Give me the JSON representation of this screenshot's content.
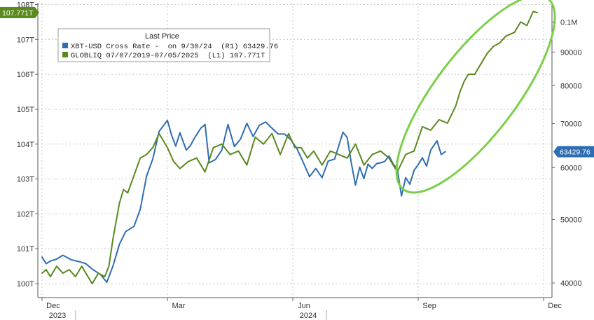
{
  "chart_data": {
    "type": "line",
    "legend": {
      "title": "Last Price",
      "entries": [
        {
          "series": "xbt",
          "text": "XBT-USD Cross Rate -  on 9/30/24  (R1) 63429.76"
        },
        {
          "series": "globliq",
          "text": "GLOBLIQ 07/07/2019-07/05/2025  (L1) 107.771T"
        }
      ],
      "placement": "top-left"
    },
    "x_axis": {
      "ticks": [
        {
          "label": "Dec",
          "sublabel": "2023",
          "month": 0
        },
        {
          "label": "Mar",
          "sublabel": "",
          "month": 3
        },
        {
          "label": "Jun",
          "sublabel": "2024",
          "month": 6
        },
        {
          "label": "Sep",
          "sublabel": "",
          "month": 9
        },
        {
          "label": "Dec",
          "sublabel": "",
          "month": 12
        }
      ],
      "range_months": [
        -0.1,
        12.2
      ]
    },
    "y_left": {
      "ticks": [
        "100T",
        "101T",
        "102T",
        "103T",
        "104T",
        "105T",
        "106T",
        "107T",
        "108T"
      ],
      "tick_values": [
        100,
        101,
        102,
        103,
        104,
        105,
        106,
        107,
        108
      ],
      "unit": "T",
      "range": [
        99.6,
        108.05
      ]
    },
    "y_right": {
      "scale": "log",
      "ticks": [
        "40000",
        "50000",
        "60000",
        "70000",
        "80000",
        "90000",
        "0.1M"
      ],
      "tick_values": [
        40000,
        50000,
        60000,
        70000,
        80000,
        90000,
        100000
      ],
      "range": [
        38000,
        107000
      ]
    },
    "grid": true,
    "series": [
      {
        "id": "xbt",
        "axis": "right",
        "color": "#2f6db3",
        "last_label": "63429.76",
        "x": [
          0.0,
          0.1,
          0.2,
          0.35,
          0.5,
          0.7,
          0.9,
          1.05,
          1.2,
          1.4,
          1.55,
          1.7,
          1.85,
          2.0,
          2.2,
          2.35,
          2.5,
          2.65,
          2.8,
          3.0,
          3.1,
          3.2,
          3.3,
          3.45,
          3.55,
          3.65,
          3.8,
          3.9,
          4.0,
          4.15,
          4.3,
          4.45,
          4.6,
          4.75,
          4.9,
          5.05,
          5.2,
          5.35,
          5.5,
          5.65,
          5.8,
          5.95,
          6.1,
          6.25,
          6.4,
          6.55,
          6.7,
          6.85,
          7.0,
          7.1,
          7.2,
          7.3,
          7.4,
          7.5,
          7.6,
          7.7,
          7.8,
          7.9,
          8.0,
          8.1,
          8.2,
          8.3,
          8.4,
          8.5,
          8.6,
          8.7,
          8.8,
          8.9,
          9.0,
          9.1,
          9.2,
          9.3,
          9.45,
          9.55,
          9.65
        ],
        "y": [
          43800,
          42800,
          43200,
          43500,
          44100,
          43400,
          43100,
          42800,
          42000,
          41200,
          40100,
          42500,
          45800,
          47900,
          48800,
          51800,
          58200,
          61800,
          68100,
          70800,
          67200,
          64700,
          67800,
          63800,
          64800,
          66600,
          68900,
          69800,
          61000,
          61700,
          63800,
          69800,
          64600,
          66300,
          70100,
          66900,
          69600,
          70400,
          68900,
          67500,
          67500,
          66200,
          64100,
          61100,
          58100,
          59800,
          57900,
          61400,
          61800,
          64800,
          67900,
          66700,
          60900,
          56400,
          60100,
          57700,
          60700,
          59800,
          60800,
          61000,
          61300,
          62500,
          60800,
          59600,
          54300,
          57900,
          56600,
          59400,
          60600,
          62100,
          60300,
          63800,
          65900,
          62800,
          63430
        ]
      },
      {
        "id": "globliq",
        "axis": "left",
        "color": "#5a8a1e",
        "last_label": "107.771T",
        "x": [
          0.0,
          0.1,
          0.2,
          0.35,
          0.5,
          0.65,
          0.8,
          0.95,
          1.1,
          1.2,
          1.35,
          1.5,
          1.6,
          1.7,
          1.85,
          1.95,
          2.05,
          2.2,
          2.35,
          2.5,
          2.65,
          2.8,
          3.0,
          3.15,
          3.3,
          3.5,
          3.7,
          3.9,
          4.1,
          4.3,
          4.5,
          4.7,
          4.9,
          5.1,
          5.3,
          5.5,
          5.7,
          5.9,
          6.05,
          6.2,
          6.35,
          6.5,
          6.7,
          6.9,
          7.1,
          7.3,
          7.5,
          7.7,
          7.9,
          8.1,
          8.3,
          8.5,
          8.7,
          8.9,
          9.1,
          9.3,
          9.5,
          9.7,
          9.9,
          10.0,
          10.1,
          10.2,
          10.35,
          10.5,
          10.65,
          10.8,
          10.95,
          11.1,
          11.3,
          11.45,
          11.6,
          11.75,
          11.85
        ],
        "y": [
          100.3,
          100.4,
          100.2,
          100.5,
          100.3,
          100.4,
          100.2,
          100.5,
          100.2,
          100.0,
          100.3,
          100.2,
          100.5,
          101.3,
          102.3,
          102.7,
          102.6,
          103.1,
          103.6,
          103.7,
          103.9,
          104.3,
          103.9,
          103.5,
          103.3,
          103.5,
          103.6,
          103.2,
          103.9,
          104.0,
          103.7,
          103.8,
          103.4,
          104.2,
          104.0,
          104.3,
          103.7,
          104.3,
          103.9,
          103.9,
          103.6,
          103.8,
          103.4,
          103.8,
          103.7,
          103.6,
          104.0,
          103.4,
          103.7,
          103.8,
          103.6,
          103.2,
          103.7,
          103.8,
          104.5,
          104.4,
          104.7,
          104.6,
          105.1,
          105.5,
          105.8,
          106.0,
          106.0,
          106.3,
          106.6,
          106.8,
          106.9,
          107.1,
          107.2,
          107.5,
          107.4,
          107.8,
          107.77
        ]
      }
    ],
    "annotation": {
      "type": "ellipse",
      "color": "#7ccf4a",
      "note": ""
    }
  },
  "colors": {
    "xbt": "#2f6db3",
    "globliq": "#5a8a1e",
    "annotation": "#7ccf4a",
    "grid": "#c8c8c8"
  }
}
